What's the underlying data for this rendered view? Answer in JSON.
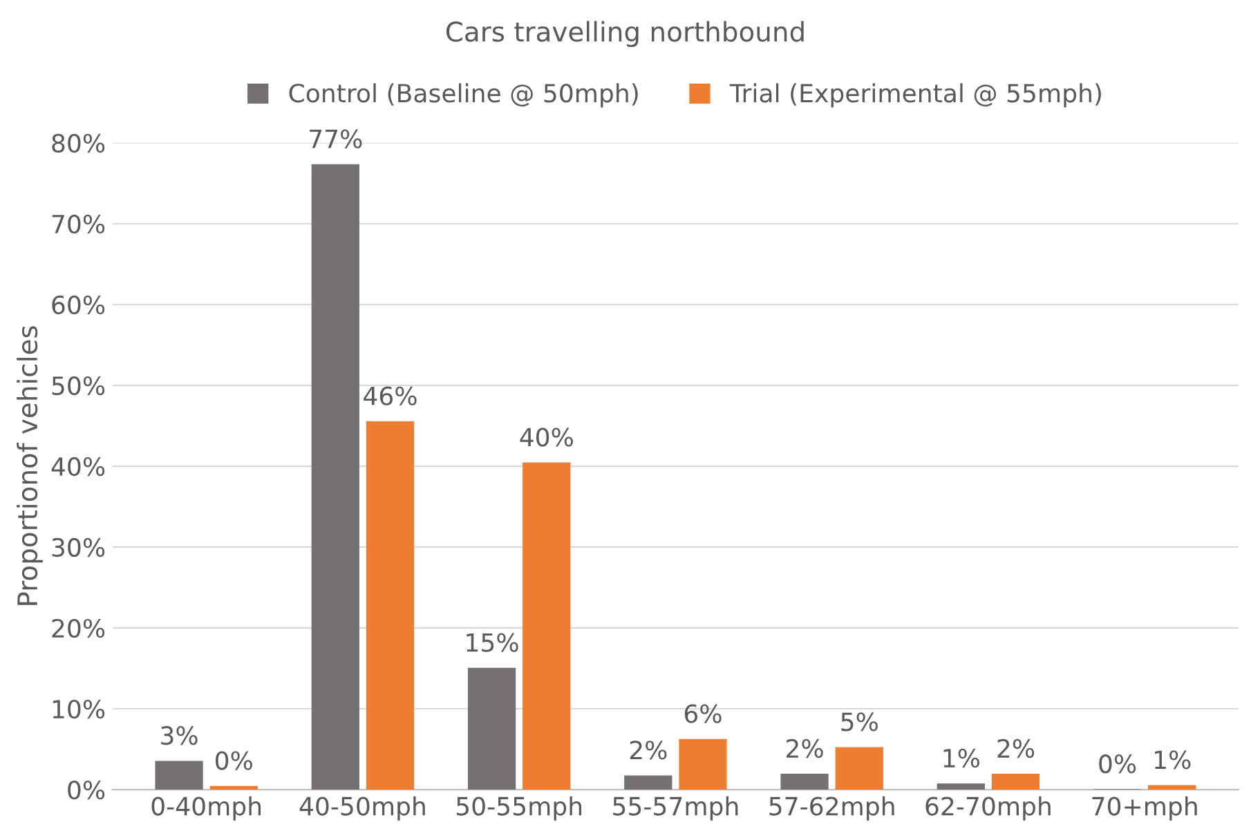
{
  "chart_data": {
    "type": "bar",
    "title": "Cars travelling northbound",
    "ylabel": "Proportionof vehicles",
    "categories": [
      "0-40mph",
      "40-50mph",
      "50-55mph",
      "55-57mph",
      "57-62mph",
      "62-70mph",
      "70+mph"
    ],
    "series": [
      {
        "name": "Control (Baseline @ 50mph)",
        "color": "#767171",
        "values": [
          3.5,
          77.3,
          15.0,
          1.7,
          1.9,
          0.7,
          0
        ],
        "value_labels": [
          "3%",
          "77%",
          "15%",
          "2%",
          "2%",
          "1%",
          "0%"
        ]
      },
      {
        "name": "Trial (Experimental @ 55mph)",
        "color": "#ed7d31",
        "values": [
          0.4,
          45.5,
          40.4,
          6.2,
          5.2,
          1.9,
          0.5
        ],
        "value_labels": [
          "0%",
          "46%",
          "40%",
          "6%",
          "5%",
          "2%",
          "1%"
        ]
      }
    ],
    "ylim": [
      0,
      80
    ],
    "yticks": [
      {
        "value": 0,
        "label": "0%"
      },
      {
        "value": 10,
        "label": "10%"
      },
      {
        "value": 20,
        "label": "20%"
      },
      {
        "value": 30,
        "label": "30%"
      },
      {
        "value": 40,
        "label": "40%"
      },
      {
        "value": 50,
        "label": "50%"
      },
      {
        "value": 60,
        "label": "60%"
      },
      {
        "value": 70,
        "label": "70%"
      },
      {
        "value": 80,
        "label": "80%"
      }
    ],
    "grid": "y",
    "legend": "top"
  }
}
